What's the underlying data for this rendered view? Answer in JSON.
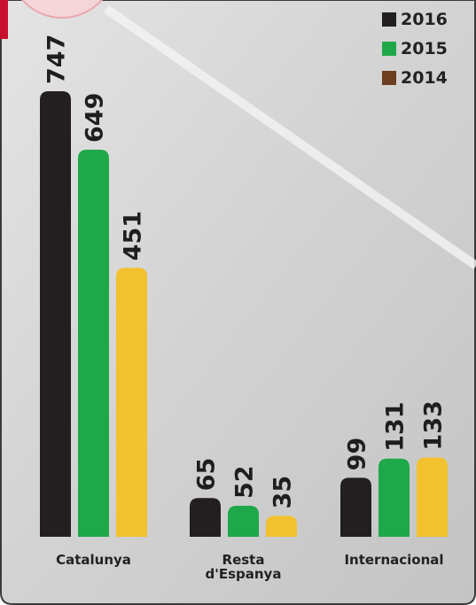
{
  "chart_data": {
    "type": "bar",
    "categories": [
      "Catalunya",
      "Resta\nd'Espanya",
      "Internacional"
    ],
    "series": [
      {
        "name": "2016",
        "color": "#231f20",
        "legend_color": "#231f20",
        "values": [
          747,
          65,
          99
        ]
      },
      {
        "name": "2015",
        "color": "#1fa84a",
        "legend_color": "#1fa84a",
        "values": [
          649,
          52,
          131
        ]
      },
      {
        "name": "2014",
        "color": "#f2c12e",
        "legend_color": "#6b3f1f",
        "values": [
          451,
          35,
          133
        ]
      }
    ],
    "legend": "top-right"
  }
}
